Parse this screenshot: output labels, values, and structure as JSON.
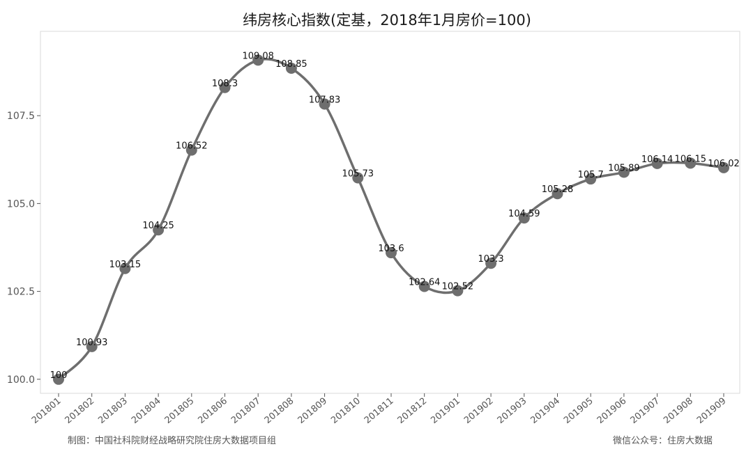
{
  "chart_data": {
    "type": "line",
    "title": "纬房核心指数(定基，2018年1月房价=100)",
    "xlabel": "",
    "ylabel": "",
    "categories": [
      "201801",
      "201802",
      "201803",
      "201804",
      "201805",
      "201806",
      "201807",
      "201808",
      "201809",
      "201810",
      "201811",
      "201812",
      "201901",
      "201902",
      "201903",
      "201904",
      "201905",
      "201906",
      "201907",
      "201908",
      "201909"
    ],
    "values": [
      100,
      100.93,
      103.15,
      104.25,
      106.52,
      108.3,
      109.08,
      108.85,
      107.83,
      105.73,
      103.6,
      102.64,
      102.52,
      103.3,
      104.59,
      105.28,
      105.7,
      105.89,
      106.14,
      106.15,
      106.02
    ],
    "data_labels": [
      "100",
      "100.93",
      "103.15",
      "104.25",
      "106.52",
      "108.3",
      "109.08",
      "108.85",
      "107.83",
      "105.73",
      "103.6",
      "102.64",
      "102.52",
      "103.3",
      "104.59",
      "105.28",
      "105.7",
      "105.89",
      "106.14",
      "106.15",
      "106.02"
    ],
    "yticks": [
      "100.0",
      "102.5",
      "105.0",
      "107.5"
    ],
    "ytick_values": [
      100,
      102.5,
      105,
      107.5
    ],
    "ylim": [
      99.6,
      109.9
    ],
    "grid": false,
    "legend": "none",
    "line_color": "#6e6e6e",
    "point_color": "#6e6e6e"
  },
  "footer": {
    "left": "制图：中国社科院财经战略研究院住房大数据项目组",
    "right": "微信公众号：住房大数据"
  }
}
